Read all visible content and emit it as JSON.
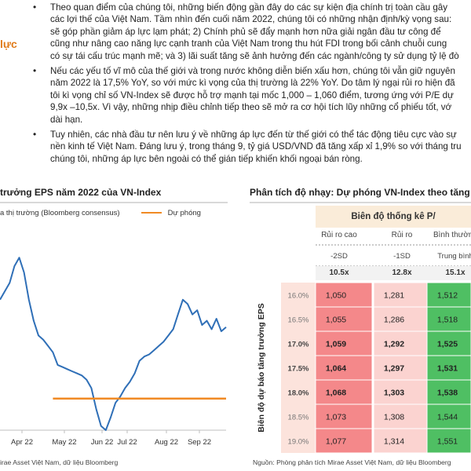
{
  "side_label": "lực",
  "bullets": [
    {
      "lines": [
        "Theo quan điểm của chúng tôi, những biến động gần đây do các sự kiện địa chính trị toàn cầu gây",
        "các lợi thế của Việt Nam. Tầm nhìn đến cuối năm 2022, chúng tôi có những nhận định/kỳ vọng sau:",
        "sẽ góp phần giảm áp lực lạm phát; 2) Chính phủ sẽ đẩy mạnh hơn nữa giải ngân đầu tư công để",
        "cũng như nâng cao năng lực cạnh tranh của Việt Nam trong thu hút FDI trong bối cảnh chuỗi cung",
        "có sự tái cấu trúc mạnh mẽ; và 3) lãi suất tăng sẽ ảnh hưởng đến các ngành/công ty sử dụng tỷ lệ đò"
      ]
    },
    {
      "lines": [
        "Nếu các yếu tố vĩ mô của thế giới và trong nước không diễn biến xấu hơn, chúng tôi vẫn giữ nguyên",
        "năm 2022 là 17,5% YoY, so với mức kì vọng của thị trường là 22% YoY. Do tâm lý ngại rủi ro hiện đã",
        "tôi kì vọng chỉ số VN-Index sẽ được hỗ trợ mạnh tại mốc 1,000 – 1,060 điểm, tương ứng với P/E dự",
        "9,9x –10,5x. Vì vậy, những nhịp điều chỉnh tiếp theo sẽ mở ra cơ hội tích lũy những cổ phiếu tốt, vớ",
        "dài hạn."
      ]
    },
    {
      "lines": [
        "Tuy nhiên, các nhà đầu tư nên lưu ý về những áp lực đến từ thế giới có thể tác động tiêu cực vào sự",
        "nền kinh tế Việt Nam. Đáng lưu ý, trong tháng 9, tỷ giá USD/VND đã tăng xấp xỉ 1,9% so với tháng tru",
        "chúng tôi, những áp lực bên ngoài có thể gián tiếp khiến khối ngoại bán ròng."
      ]
    }
  ],
  "left_panel": {
    "title": "trưởng EPS năm 2022 của VN-Index",
    "legend_market": "a thị trường (Bloomberg consensus)",
    "legend_forecast": "Dự phóng",
    "source": "irae Asset Việt Nam, dữ liệu Bloomberg"
  },
  "chart_data": {
    "type": "line",
    "title": "trưởng EPS năm 2022 của VN-Index",
    "x_tick_labels": [
      "Apr 22",
      "May 22",
      "Jun 22",
      "Jul 22",
      "Aug 22",
      "Sep 22"
    ],
    "series": [
      {
        "name": "a thị trường (Bloomberg consensus)",
        "color": "#2f6fb7",
        "values": [
          0.62,
          0.66,
          0.7,
          0.78,
          0.82,
          0.75,
          0.62,
          0.52,
          0.45,
          0.43,
          0.4,
          0.37,
          0.31,
          0.3,
          0.29,
          0.28,
          0.27,
          0.26,
          0.24,
          0.2,
          0.1,
          0.02,
          0.0,
          0.06,
          0.13,
          0.16,
          0.2,
          0.23,
          0.27,
          0.33,
          0.35,
          0.36,
          0.38,
          0.4,
          0.42,
          0.45,
          0.48,
          0.55,
          0.62,
          0.6,
          0.55,
          0.57,
          0.5,
          0.52,
          0.48,
          0.53,
          0.47,
          0.49
        ]
      },
      {
        "name": "Dự phóng",
        "color": "#f08a24",
        "values": [
          0.15,
          0.15
        ]
      }
    ]
  },
  "right_panel": {
    "title": "Phân tích độ nhạy: Dự phóng VN-Index theo tăng",
    "table_title": "Biên độ thống kê P/",
    "col_headers": [
      "Rủi ro cao",
      "Rủi ro",
      "Bình thường"
    ],
    "col_sd": [
      "-2SD",
      "-1SD",
      "Trung bình"
    ],
    "col_pe": [
      "10.5x",
      "12.8x",
      "15.1x"
    ],
    "row_axis_label": "Biên độ dự báo tăng trưởng EPS",
    "rows": [
      {
        "label": "16.0%",
        "values": [
          "1,050",
          "1,281",
          "1,512"
        ],
        "bold": false
      },
      {
        "label": "16.5%",
        "values": [
          "1,055",
          "1,286",
          "1,518"
        ],
        "bold": false
      },
      {
        "label": "17.0%",
        "values": [
          "1,059",
          "1,292",
          "1,525"
        ],
        "bold": true
      },
      {
        "label": "17.5%",
        "values": [
          "1,064",
          "1,297",
          "1,531"
        ],
        "bold": true
      },
      {
        "label": "18.0%",
        "values": [
          "1,068",
          "1,303",
          "1,538"
        ],
        "bold": true
      },
      {
        "label": "18.5%",
        "values": [
          "1,073",
          "1,308",
          "1,544"
        ],
        "bold": false
      },
      {
        "label": "19.0%",
        "values": [
          "1,077",
          "1,314",
          "1,551"
        ],
        "bold": false
      }
    ],
    "source": "Nguồn: Phòng phân tích Mirae Asset Việt Nam, dữ liệu Bloomberg",
    "colors": {
      "red": "#f4888a",
      "pink": "#fbd3d0",
      "green": "#4fbf63",
      "label_bg": "#fce3dc",
      "header_bg": "#faecd9"
    }
  }
}
